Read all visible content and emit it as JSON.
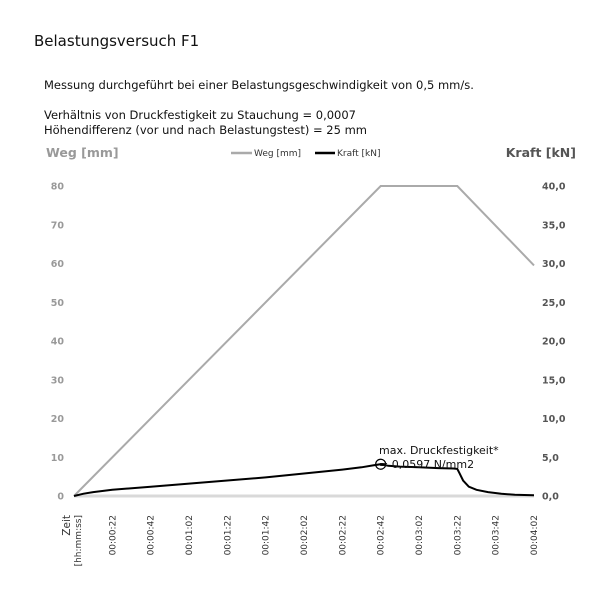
{
  "header": {
    "title": "Belastungsversuch F1",
    "line1": "Messung durchgeführt bei einer Belastungsgeschwindigkeit von 0,5 mm/s.",
    "line2": "Verhältnis von Druckfestigkeit zu Stauchung = 0,0007",
    "line3": "Höhendifferenz (vor und nach Belastungstest) = 25 mm"
  },
  "chart_data": {
    "type": "line",
    "y_left_label": "Weg [mm]",
    "y_right_label": "Kraft [kN]",
    "x_label_line1": "Zeit",
    "x_label_line2": "[hh:mm:ss]",
    "y_left_ticks": [
      "0",
      "10",
      "20",
      "30",
      "40",
      "50",
      "60",
      "70",
      "80"
    ],
    "y_right_ticks": [
      "0,0",
      "5,0",
      "10,0",
      "15,0",
      "20,0",
      "25,0",
      "30,0",
      "35,0",
      "40,0"
    ],
    "ylim_left": [
      0,
      80
    ],
    "ylim_right": [
      0,
      40
    ],
    "x_ticks": [
      "00:00:22",
      "00:00:42",
      "00:01:02",
      "00:01:22",
      "00:01:42",
      "00:02:02",
      "00:02:22",
      "00:02:42",
      "00:03:02",
      "00:03:22",
      "00:03:42",
      "00:04:02"
    ],
    "xlim_seconds": [
      2,
      242
    ],
    "grid": false,
    "legend_position": "top-center",
    "series": [
      {
        "name": "Weg [mm]",
        "axis": "left",
        "color": "#aaaaaa",
        "x": [
          2,
          162,
          202,
          242
        ],
        "y": [
          0,
          80,
          80,
          59.5
        ]
      },
      {
        "name": "Kraft [kN]",
        "axis": "right",
        "color": "#000000",
        "x": [
          2,
          7,
          12,
          22,
          42,
          62,
          82,
          102,
          122,
          142,
          152,
          158,
          162,
          166,
          172,
          182,
          192,
          200,
          202,
          203,
          205,
          208,
          212,
          218,
          225,
          232,
          242
        ],
        "y": [
          0,
          0.3,
          0.5,
          0.8,
          1.2,
          1.6,
          2.0,
          2.4,
          2.9,
          3.4,
          3.7,
          3.95,
          4.1,
          3.9,
          3.8,
          3.7,
          3.6,
          3.55,
          3.5,
          3.0,
          2.0,
          1.2,
          0.8,
          0.5,
          0.3,
          0.15,
          0.1
        ]
      }
    ],
    "annotation": {
      "line1": "max. Druckfestigkeit*",
      "line2": "= 0,0597 N/mm2",
      "x": 162,
      "y_right": 4.1
    }
  }
}
